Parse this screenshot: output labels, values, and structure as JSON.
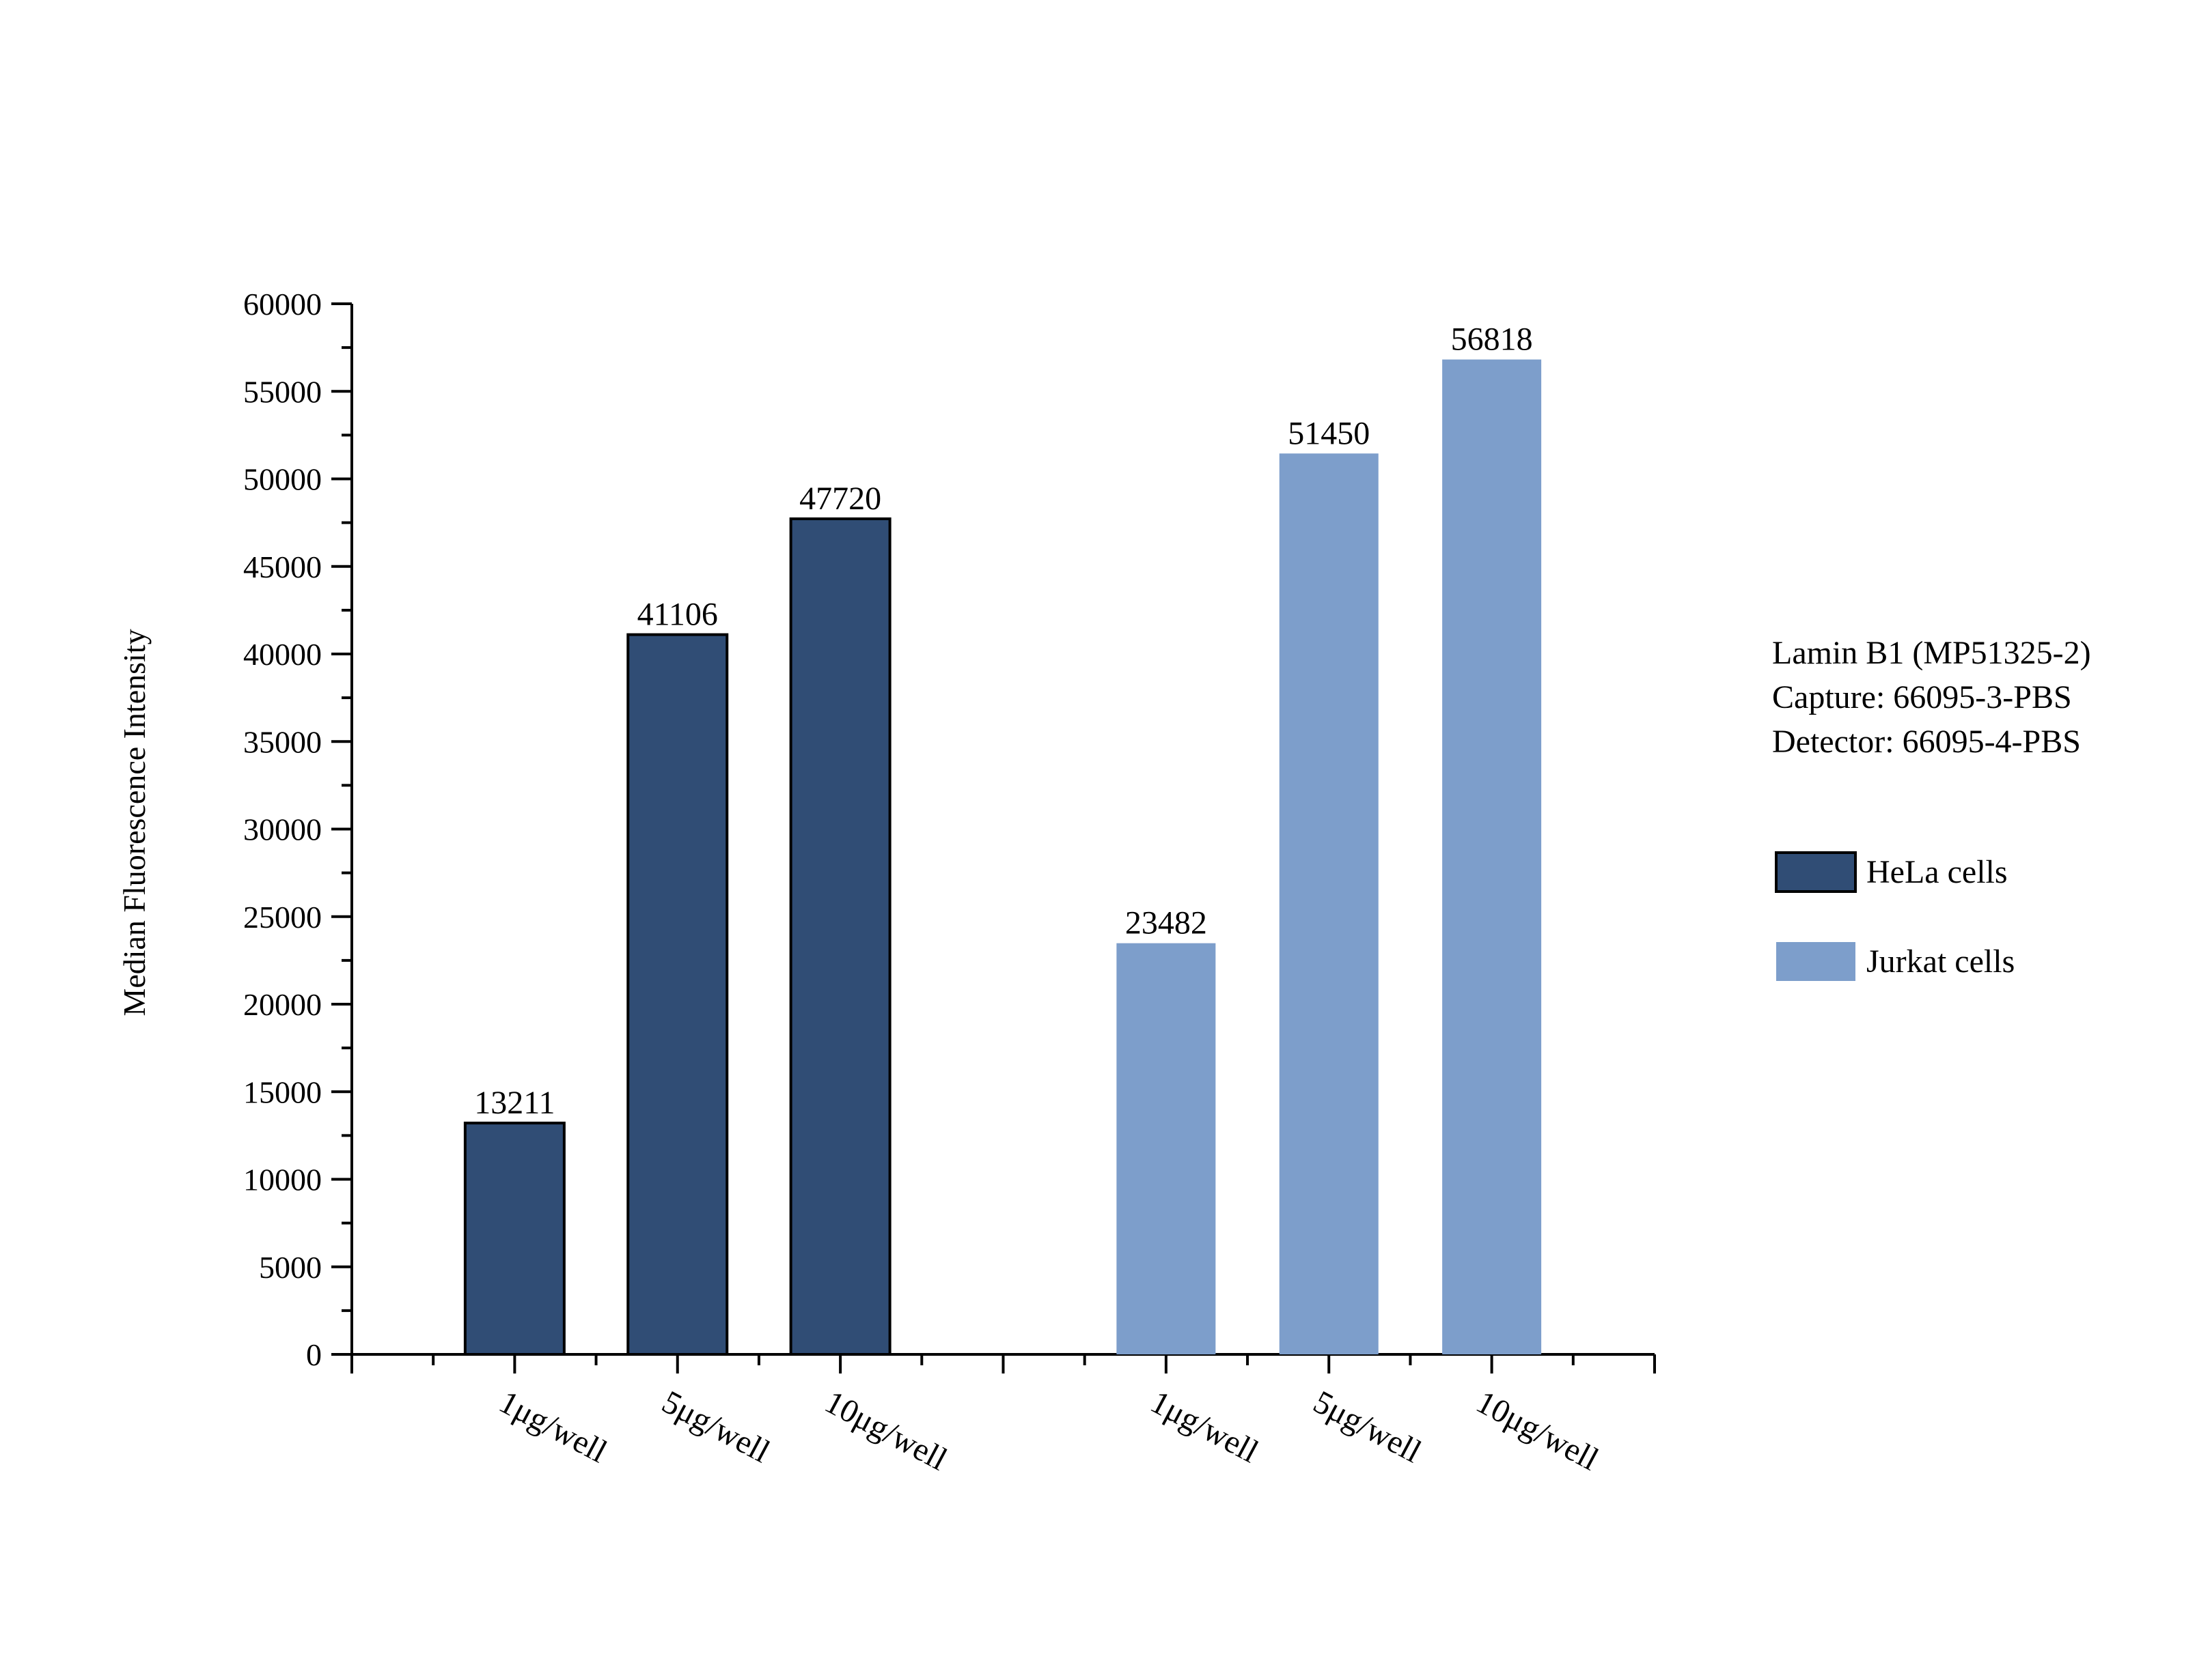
{
  "chart_data": {
    "type": "bar",
    "title": "",
    "xlabel": "",
    "ylabel": "Median Fluorescence Intensity",
    "ylim": [
      0,
      60000
    ],
    "yticks": [
      0,
      5000,
      10000,
      15000,
      20000,
      25000,
      30000,
      35000,
      40000,
      45000,
      50000,
      55000,
      60000
    ],
    "grid": false,
    "legend_position": "right",
    "info_lines": [
      "Lamin B1 (MP51325-2)",
      "Capture: 66095-3-PBS",
      "Detector: 66095-4-PBS"
    ],
    "series": [
      {
        "name": "HeLa cells",
        "color": "#304d75",
        "outlined": true,
        "categories": [
          "1μg/well",
          "5μg/well",
          "10μg/well"
        ],
        "values": [
          13211,
          41106,
          47720
        ]
      },
      {
        "name": "Jurkat cells",
        "color": "#7d9ecb",
        "outlined": false,
        "categories": [
          "1μg/well",
          "5μg/well",
          "10μg/well"
        ],
        "values": [
          23482,
          51450,
          56818
        ]
      }
    ]
  }
}
